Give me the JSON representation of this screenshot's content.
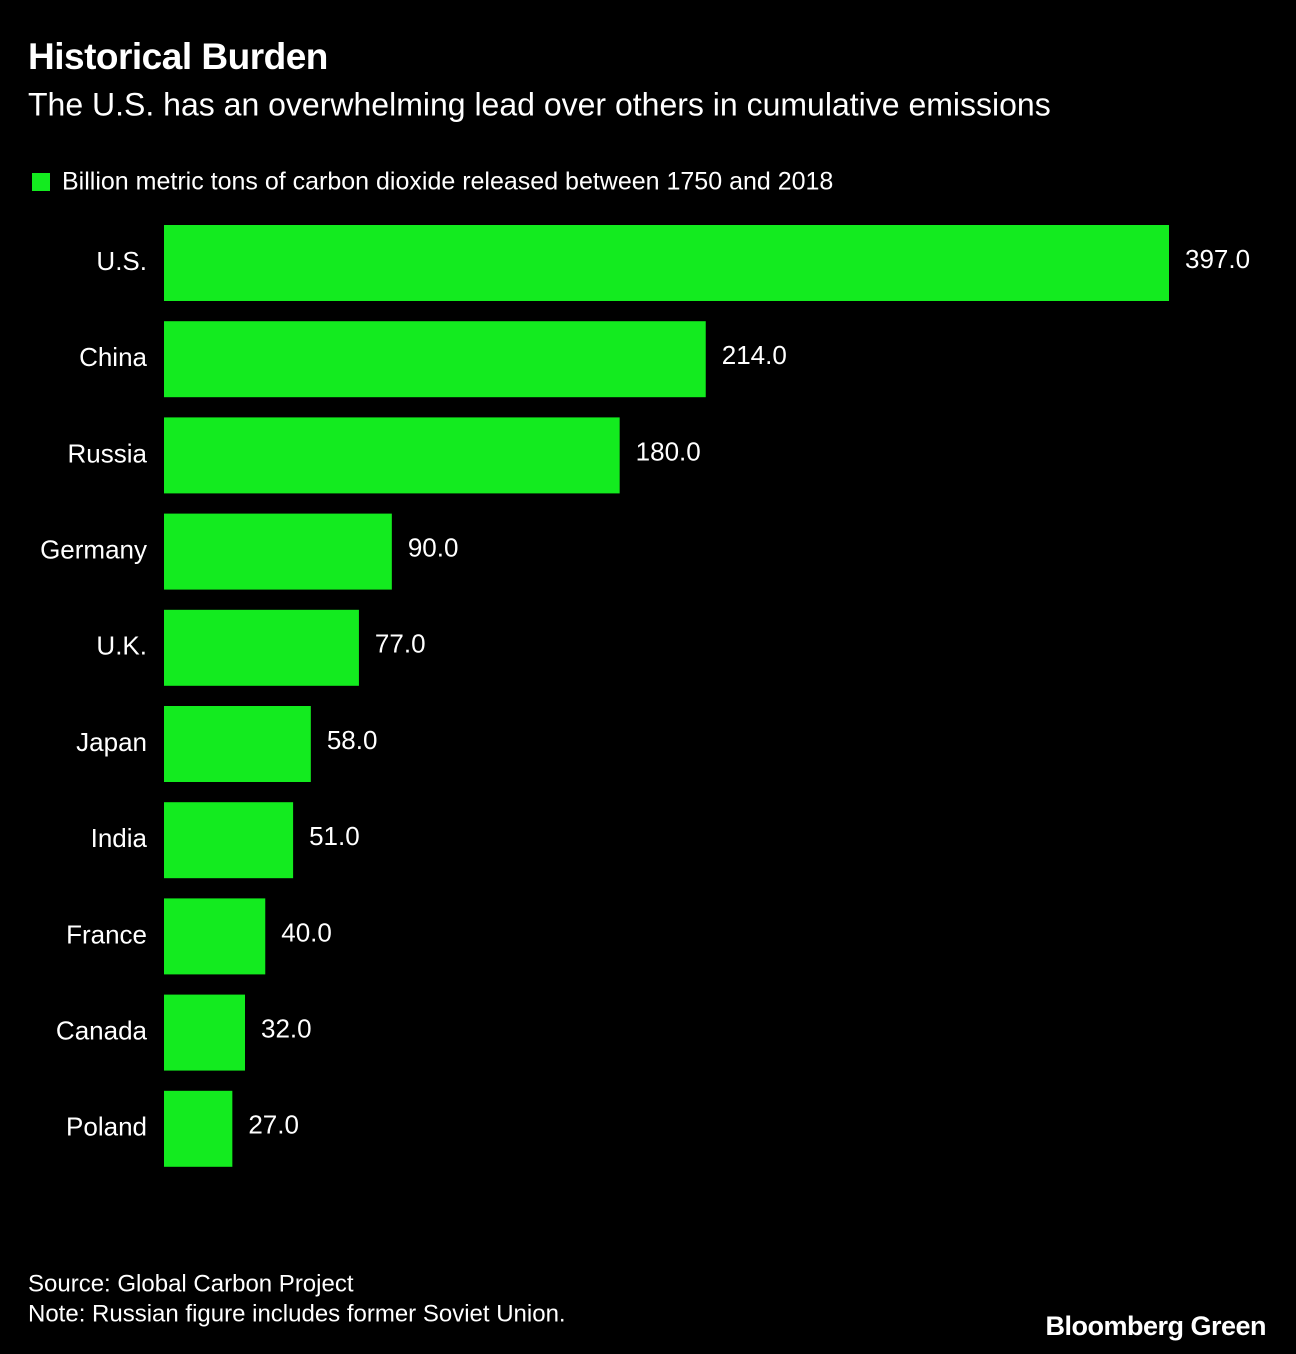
{
  "chart_data": {
    "type": "bar",
    "orientation": "horizontal",
    "title": "Historical Burden",
    "subtitle": "The U.S. has an overwhelming lead over others in cumulative emissions",
    "categories": [
      "U.S.",
      "China",
      "Russia",
      "Germany",
      "U.K.",
      "Japan",
      "India",
      "France",
      "Canada",
      "Poland"
    ],
    "series": [
      {
        "name": "Billion metric tons of carbon dioxide released between 1750 and 2018",
        "color": "#13eb1f",
        "values": [
          397,
          214,
          180,
          90,
          77,
          58,
          51,
          40,
          32,
          27
        ],
        "value_labels": [
          "397.0",
          "214.0",
          "180.0",
          "90.0",
          "77.0",
          "58.0",
          "51.0",
          "40.0",
          "32.0",
          "27.0"
        ]
      }
    ],
    "source": "Source: Global Carbon Project",
    "note": "Note: Russian figure includes former Soviet Union.",
    "brand": "Bloomberg Green"
  }
}
